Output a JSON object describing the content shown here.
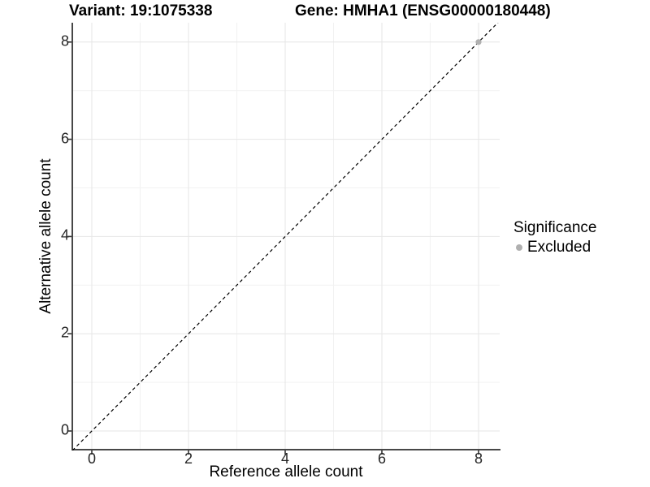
{
  "chart_data": {
    "type": "scatter",
    "titles": {
      "variant": "Variant: 19:1075338",
      "gene": "Gene: HMHA1 (ENSG00000180448)"
    },
    "xlabel": "Reference allele count",
    "ylabel": "Alternative allele count",
    "xlim": [
      -0.4,
      8.4
    ],
    "ylim": [
      -0.4,
      8.4
    ],
    "xticks": [
      0,
      2,
      4,
      6,
      8
    ],
    "yticks": [
      0,
      2,
      4,
      6,
      8
    ],
    "minor_gridlines": [
      1,
      3,
      5,
      7
    ],
    "grid": "major+minor",
    "identity_line": {
      "style": "dashed",
      "color": "#000000",
      "from": -0.4,
      "to": 8.44
    },
    "legend": {
      "title": "Significance",
      "position": "right",
      "items": [
        {
          "label": "Excluded",
          "color": "#b0b0b0"
        }
      ]
    },
    "series": [
      {
        "name": "Excluded",
        "color": "#b0b0b0",
        "points": [
          [
            8,
            8
          ]
        ]
      }
    ]
  },
  "colors": {
    "background": "#ffffff",
    "grid_major": "#e6e6e6",
    "grid_minor": "#f2f2f2",
    "axis_line": "#474747",
    "tick_mark": "#333333",
    "text": "#000000",
    "excluded_point": "#b0b0b0",
    "identity_line": "#000000"
  }
}
